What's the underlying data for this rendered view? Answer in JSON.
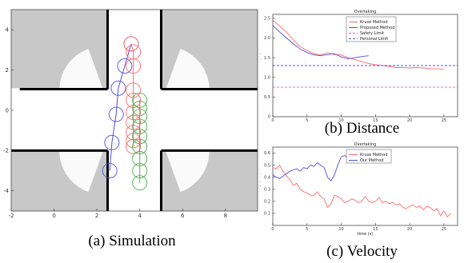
{
  "captions": {
    "a": "(a) Simulation",
    "b": "(b) Distance",
    "c": "(c) Velocity"
  },
  "colors": {
    "red": "#ff6b6b",
    "blue": "#4f4fe0",
    "green": "#4caf50",
    "magenta": "#e05ad0",
    "gray": "#c8c8c8"
  },
  "chart_data": [
    {
      "id": "a",
      "type": "scatter",
      "title": "",
      "xlabel": "",
      "ylabel": "",
      "xlim": [
        -2,
        9.5
      ],
      "ylim": [
        -5,
        5
      ],
      "xticks": [
        -2,
        0,
        2,
        4,
        6,
        8
      ],
      "yticks": [
        4,
        2,
        0,
        -2,
        -4
      ],
      "series": [
        {
          "color": "blue",
          "x": [
            2.6,
            2.7,
            2.9,
            3.0,
            3.3,
            3.6
          ],
          "y": [
            -3.0,
            -1.6,
            -0.2,
            1.1,
            2.2,
            3.3
          ]
        },
        {
          "color": "red",
          "x": [
            3.6,
            3.7,
            3.7,
            3.7,
            3.7,
            3.7,
            3.7,
            3.7,
            3.7,
            3.7
          ],
          "y": [
            3.3,
            2.9,
            2.2,
            1.0,
            0.5,
            -0.1,
            -0.6,
            -1.1,
            -1.5,
            -1.8
          ]
        },
        {
          "color": "green",
          "x": [
            4.0,
            4.0,
            4.0,
            4.0,
            4.0,
            4.0,
            4.0,
            4.0,
            4.0
          ],
          "y": [
            0.5,
            0.1,
            -0.3,
            -0.8,
            -1.3,
            -1.8,
            -2.4,
            -3.0,
            -3.6
          ]
        }
      ]
    },
    {
      "id": "b",
      "type": "line",
      "title": "Overtaking",
      "xlabel": "",
      "ylabel": "distance (m)",
      "xlim": [
        0,
        27
      ],
      "ylim": [
        0,
        2.6
      ],
      "xticks": [
        0,
        5,
        10,
        15,
        20,
        25
      ],
      "yticks": [
        0.0,
        0.5,
        1.0,
        1.5,
        2.0,
        2.5
      ],
      "legend_position": "top-right",
      "series": [
        {
          "name": "Kruse Method",
          "color": "red",
          "style": "solid",
          "x": [
            0,
            1,
            2,
            3,
            4,
            5,
            6,
            7,
            8,
            9,
            10,
            11,
            12,
            13,
            14,
            15,
            16,
            17,
            18,
            19,
            20,
            21,
            22,
            23,
            24,
            25
          ],
          "y": [
            2.45,
            2.3,
            2.15,
            1.95,
            1.78,
            1.68,
            1.6,
            1.57,
            1.62,
            1.58,
            1.57,
            1.5,
            1.45,
            1.4,
            1.35,
            1.32,
            1.3,
            1.28,
            1.25,
            1.25,
            1.24,
            1.25,
            1.24,
            1.22,
            1.22,
            1.2
          ]
        },
        {
          "name": "Proposed Method",
          "color": "blue",
          "style": "solid",
          "x": [
            0,
            1,
            2,
            3,
            4,
            5,
            6,
            7,
            8,
            9,
            10,
            11,
            12,
            13,
            14
          ],
          "y": [
            2.32,
            2.15,
            2.0,
            1.85,
            1.72,
            1.63,
            1.57,
            1.55,
            1.58,
            1.6,
            1.52,
            1.47,
            1.5,
            1.53,
            1.55
          ]
        },
        {
          "name": "Safety Limit",
          "color": "magenta",
          "style": "dashed",
          "x": [
            0,
            27
          ],
          "y": [
            0.75,
            0.75
          ]
        },
        {
          "name": "Personal Limit",
          "color": "blue",
          "style": "dashed",
          "x": [
            0,
            27
          ],
          "y": [
            1.3,
            1.3
          ]
        }
      ]
    },
    {
      "id": "c",
      "type": "line",
      "title": "Overtaking",
      "xlabel": "time (s)",
      "ylabel": "velocity (m/s)",
      "xlim": [
        0,
        27
      ],
      "ylim": [
        0.0,
        0.65
      ],
      "xticks": [
        0,
        5,
        10,
        15,
        20,
        25
      ],
      "yticks": [
        0.1,
        0.2,
        0.3,
        0.4,
        0.5,
        0.6
      ],
      "legend_position": "top-right",
      "series": [
        {
          "name": "Kruse Method",
          "color": "red",
          "style": "solid",
          "x": [
            0,
            0.5,
            1,
            1.5,
            2,
            2.5,
            3,
            3.5,
            4,
            4.5,
            5,
            5.5,
            6,
            6.5,
            7,
            7.5,
            8,
            8.5,
            9,
            9.5,
            10,
            10.5,
            11,
            11.5,
            12,
            12.5,
            13,
            13.5,
            14,
            14.5,
            15,
            15.5,
            16,
            16.5,
            17,
            17.5,
            18,
            18.5,
            19,
            19.5,
            20,
            20.5,
            21,
            21.5,
            22,
            22.5,
            23,
            23.5,
            24,
            24.5,
            25,
            25.5,
            26
          ],
          "y": [
            0.48,
            0.47,
            0.5,
            0.45,
            0.41,
            0.38,
            0.33,
            0.35,
            0.3,
            0.28,
            0.27,
            0.25,
            0.25,
            0.28,
            0.24,
            0.22,
            0.15,
            0.18,
            0.25,
            0.24,
            0.22,
            0.19,
            0.2,
            0.22,
            0.21,
            0.19,
            0.2,
            0.24,
            0.2,
            0.19,
            0.2,
            0.23,
            0.19,
            0.2,
            0.18,
            0.19,
            0.17,
            0.18,
            0.15,
            0.14,
            0.16,
            0.17,
            0.15,
            0.16,
            0.13,
            0.16,
            0.15,
            0.12,
            0.14,
            0.08,
            0.12,
            0.07,
            0.1
          ]
        },
        {
          "name": "Our Method",
          "color": "blue",
          "style": "solid",
          "x": [
            0,
            0.5,
            1,
            1.5,
            2,
            2.5,
            3,
            3.5,
            4,
            4.5,
            5,
            5.5,
            6,
            6.5,
            7,
            7.5,
            8,
            8.5,
            9,
            9.5,
            10,
            10.5,
            11,
            11.5,
            12,
            12.5,
            13,
            13.5,
            14
          ],
          "y": [
            0.42,
            0.4,
            0.39,
            0.41,
            0.43,
            0.45,
            0.46,
            0.47,
            0.45,
            0.48,
            0.47,
            0.5,
            0.49,
            0.52,
            0.5,
            0.48,
            0.4,
            0.37,
            0.42,
            0.5,
            0.57,
            0.58,
            0.56,
            0.57,
            0.55,
            0.57,
            0.55,
            0.56,
            0.54
          ]
        }
      ]
    }
  ]
}
